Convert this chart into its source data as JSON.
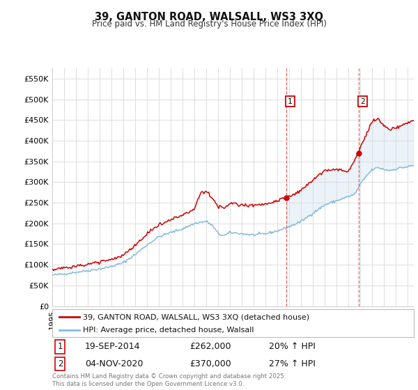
{
  "title": "39, GANTON ROAD, WALSALL, WS3 3XQ",
  "subtitle": "Price paid vs. HM Land Registry's House Price Index (HPI)",
  "legend_property": "39, GANTON ROAD, WALSALL, WS3 3XQ (detached house)",
  "legend_hpi": "HPI: Average price, detached house, Walsall",
  "transaction1_date": "19-SEP-2014",
  "transaction1_price": "£262,000",
  "transaction1_hpi": "20% ↑ HPI",
  "transaction2_date": "04-NOV-2020",
  "transaction2_price": "£370,000",
  "transaction2_hpi": "27% ↑ HPI",
  "footer": "Contains HM Land Registry data © Crown copyright and database right 2025.\nThis data is licensed under the Open Government Licence v3.0.",
  "property_color": "#cc0000",
  "hpi_color": "#88bbdd",
  "hpi_fill_color": "#c8dff0",
  "vline_color": "#dd4444",
  "background_color": "#ffffff",
  "ylim": [
    0,
    575000
  ],
  "yticks": [
    0,
    50000,
    100000,
    150000,
    200000,
    250000,
    300000,
    350000,
    400000,
    450000,
    500000,
    550000
  ],
  "xlim_start": 1995.0,
  "xlim_end": 2025.5,
  "transaction1_x": 2014.72,
  "transaction2_x": 2020.84,
  "transaction1_y": 262000,
  "transaction2_y": 370000,
  "hpi_anchors": [
    [
      1995.0,
      75000
    ],
    [
      1996.0,
      78000
    ],
    [
      1997.0,
      82000
    ],
    [
      1998.0,
      86000
    ],
    [
      1999.0,
      90000
    ],
    [
      2000.0,
      96000
    ],
    [
      2001.0,
      105000
    ],
    [
      2002.0,
      125000
    ],
    [
      2003.0,
      148000
    ],
    [
      2004.0,
      168000
    ],
    [
      2005.0,
      178000
    ],
    [
      2006.0,
      187000
    ],
    [
      2007.0,
      200000
    ],
    [
      2008.0,
      205000
    ],
    [
      2008.5,
      195000
    ],
    [
      2009.0,
      175000
    ],
    [
      2009.5,
      170000
    ],
    [
      2010.0,
      178000
    ],
    [
      2011.0,
      175000
    ],
    [
      2012.0,
      172000
    ],
    [
      2013.0,
      175000
    ],
    [
      2014.0,
      182000
    ],
    [
      2015.0,
      192000
    ],
    [
      2016.0,
      205000
    ],
    [
      2017.0,
      225000
    ],
    [
      2018.0,
      245000
    ],
    [
      2019.0,
      255000
    ],
    [
      2020.0,
      265000
    ],
    [
      2020.5,
      270000
    ],
    [
      2021.0,
      295000
    ],
    [
      2021.5,
      315000
    ],
    [
      2022.0,
      330000
    ],
    [
      2022.5,
      335000
    ],
    [
      2023.0,
      330000
    ],
    [
      2023.5,
      328000
    ],
    [
      2024.0,
      332000
    ],
    [
      2024.5,
      335000
    ],
    [
      2025.0,
      337000
    ],
    [
      2025.5,
      340000
    ]
  ],
  "prop_anchors": [
    [
      1995.0,
      88000
    ],
    [
      1996.0,
      92000
    ],
    [
      1997.0,
      96000
    ],
    [
      1998.0,
      101000
    ],
    [
      1999.0,
      106000
    ],
    [
      2000.0,
      113000
    ],
    [
      2001.0,
      123000
    ],
    [
      2002.0,
      147000
    ],
    [
      2003.0,
      174000
    ],
    [
      2004.0,
      197000
    ],
    [
      2005.0,
      209000
    ],
    [
      2006.0,
      220000
    ],
    [
      2007.0,
      235000
    ],
    [
      2007.5,
      275000
    ],
    [
      2008.0,
      278000
    ],
    [
      2008.5,
      262000
    ],
    [
      2009.0,
      240000
    ],
    [
      2009.5,
      238000
    ],
    [
      2010.0,
      248000
    ],
    [
      2011.0,
      245000
    ],
    [
      2012.0,
      242000
    ],
    [
      2013.0,
      248000
    ],
    [
      2014.0,
      255000
    ],
    [
      2014.72,
      262000
    ],
    [
      2015.0,
      265000
    ],
    [
      2016.0,
      280000
    ],
    [
      2017.0,
      305000
    ],
    [
      2018.0,
      328000
    ],
    [
      2019.0,
      330000
    ],
    [
      2020.0,
      325000
    ],
    [
      2020.84,
      370000
    ],
    [
      2021.0,
      388000
    ],
    [
      2021.5,
      415000
    ],
    [
      2022.0,
      448000
    ],
    [
      2022.5,
      452000
    ],
    [
      2023.0,
      435000
    ],
    [
      2023.5,
      425000
    ],
    [
      2024.0,
      432000
    ],
    [
      2024.5,
      437000
    ],
    [
      2025.0,
      442000
    ],
    [
      2025.5,
      448000
    ]
  ]
}
